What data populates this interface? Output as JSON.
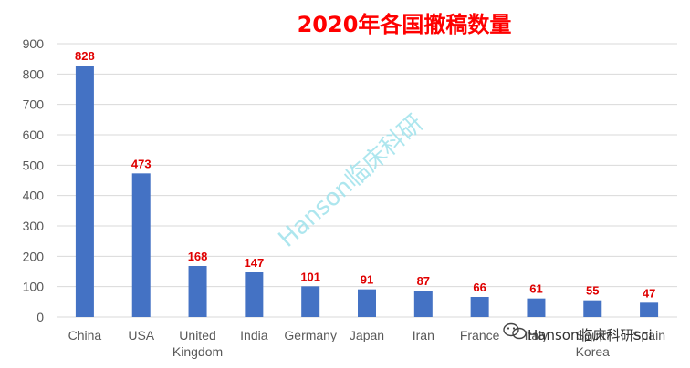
{
  "chart_data": {
    "type": "bar",
    "title": "2020年各国撤稿数量",
    "xlabel": "",
    "ylabel": "",
    "categories": [
      [
        "China"
      ],
      [
        "USA"
      ],
      [
        "United",
        "Kingdom"
      ],
      [
        "India"
      ],
      [
        "Germany"
      ],
      [
        "Japan"
      ],
      [
        "Iran"
      ],
      [
        "France"
      ],
      [
        "Italy"
      ],
      [
        "South",
        "Korea"
      ],
      [
        "Spain"
      ]
    ],
    "values": [
      828,
      473,
      168,
      147,
      101,
      91,
      87,
      66,
      61,
      55,
      47
    ],
    "ylim": [
      0,
      900
    ],
    "yticks": [
      0,
      100,
      200,
      300,
      400,
      500,
      600,
      700,
      800,
      900
    ],
    "grid": true,
    "legend": "none",
    "bar_color": "#4472c4",
    "label_color": "#e00000",
    "title_color": "#ff0000"
  },
  "watermark": {
    "text": "Hanson临床科研",
    "color": "#9fe2ec"
  },
  "wechat_badge": {
    "text": "Hanson临床科研sci",
    "icon": "wechat-icon"
  }
}
